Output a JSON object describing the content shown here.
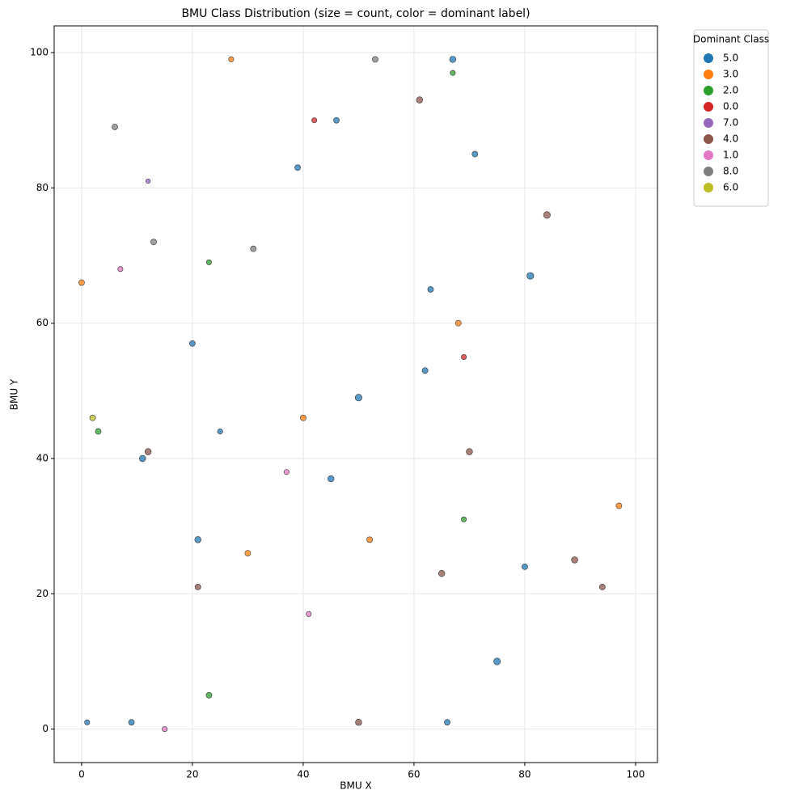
{
  "chart_data": {
    "type": "scatter",
    "title": "BMU Class Distribution (size = count, color = dominant label)",
    "x_label": "BMU X",
    "y_label": "BMU Y",
    "xlim": [
      -4.95,
      103.95
    ],
    "ylim": [
      -4.95,
      103.95
    ],
    "xticks": [
      0,
      20,
      40,
      60,
      80,
      100
    ],
    "yticks": [
      0,
      20,
      40,
      60,
      80,
      100
    ],
    "grid": true,
    "legend": "right",
    "legend_title": "Dominant Class",
    "series": [
      {
        "name": "5.0",
        "color": "#1f77b4",
        "x": [
          67,
          46,
          71,
          39,
          81,
          62,
          50,
          20,
          11,
          45,
          21,
          1,
          9,
          66,
          75,
          80,
          63,
          25
        ],
        "y": [
          99,
          90,
          85,
          83,
          67,
          53,
          49,
          57,
          40,
          37,
          28,
          1,
          1,
          1,
          10,
          24,
          65,
          44
        ],
        "sizes": [
          6,
          5,
          5,
          5,
          7,
          5,
          7,
          5,
          6,
          6,
          6,
          4,
          5,
          5,
          7,
          5,
          5,
          4
        ]
      },
      {
        "name": "3.0",
        "color": "#ff7f0e",
        "x": [
          27,
          0,
          40,
          52,
          30,
          97,
          68
        ],
        "y": [
          99,
          66,
          46,
          28,
          26,
          33,
          60
        ],
        "sizes": [
          4,
          5,
          5,
          5,
          5,
          5,
          5
        ]
      },
      {
        "name": "2.0",
        "color": "#2ca02c",
        "x": [
          67,
          3,
          23,
          69,
          23
        ],
        "y": [
          97,
          44,
          5,
          31,
          69
        ],
        "sizes": [
          4,
          5,
          5,
          4,
          4
        ]
      },
      {
        "name": "0.0",
        "color": "#d62728",
        "x": [
          69,
          42
        ],
        "y": [
          55,
          90
        ],
        "sizes": [
          4,
          4
        ]
      },
      {
        "name": "7.0",
        "color": "#9467bd",
        "x": [
          12
        ],
        "y": [
          81
        ],
        "sizes": [
          3
        ]
      },
      {
        "name": "4.0",
        "color": "#8c564b",
        "x": [
          84,
          89,
          21,
          94,
          50,
          61,
          70,
          12,
          65
        ],
        "y": [
          76,
          25,
          21,
          21,
          1,
          93,
          41,
          41,
          23
        ],
        "sizes": [
          7,
          6,
          5,
          5,
          6,
          6,
          6,
          6,
          6
        ]
      },
      {
        "name": "1.0",
        "color": "#e377c2",
        "x": [
          37,
          7,
          41,
          15
        ],
        "y": [
          38,
          68,
          17,
          0
        ],
        "sizes": [
          4,
          4,
          4,
          4
        ]
      },
      {
        "name": "8.0",
        "color": "#7f7f7f",
        "x": [
          31,
          53,
          13,
          6
        ],
        "y": [
          71,
          99,
          72,
          89
        ],
        "sizes": [
          5,
          5,
          5,
          5
        ]
      },
      {
        "name": "6.0",
        "color": "#bcbd22",
        "x": [
          2
        ],
        "y": [
          46
        ],
        "sizes": [
          5
        ]
      }
    ]
  }
}
